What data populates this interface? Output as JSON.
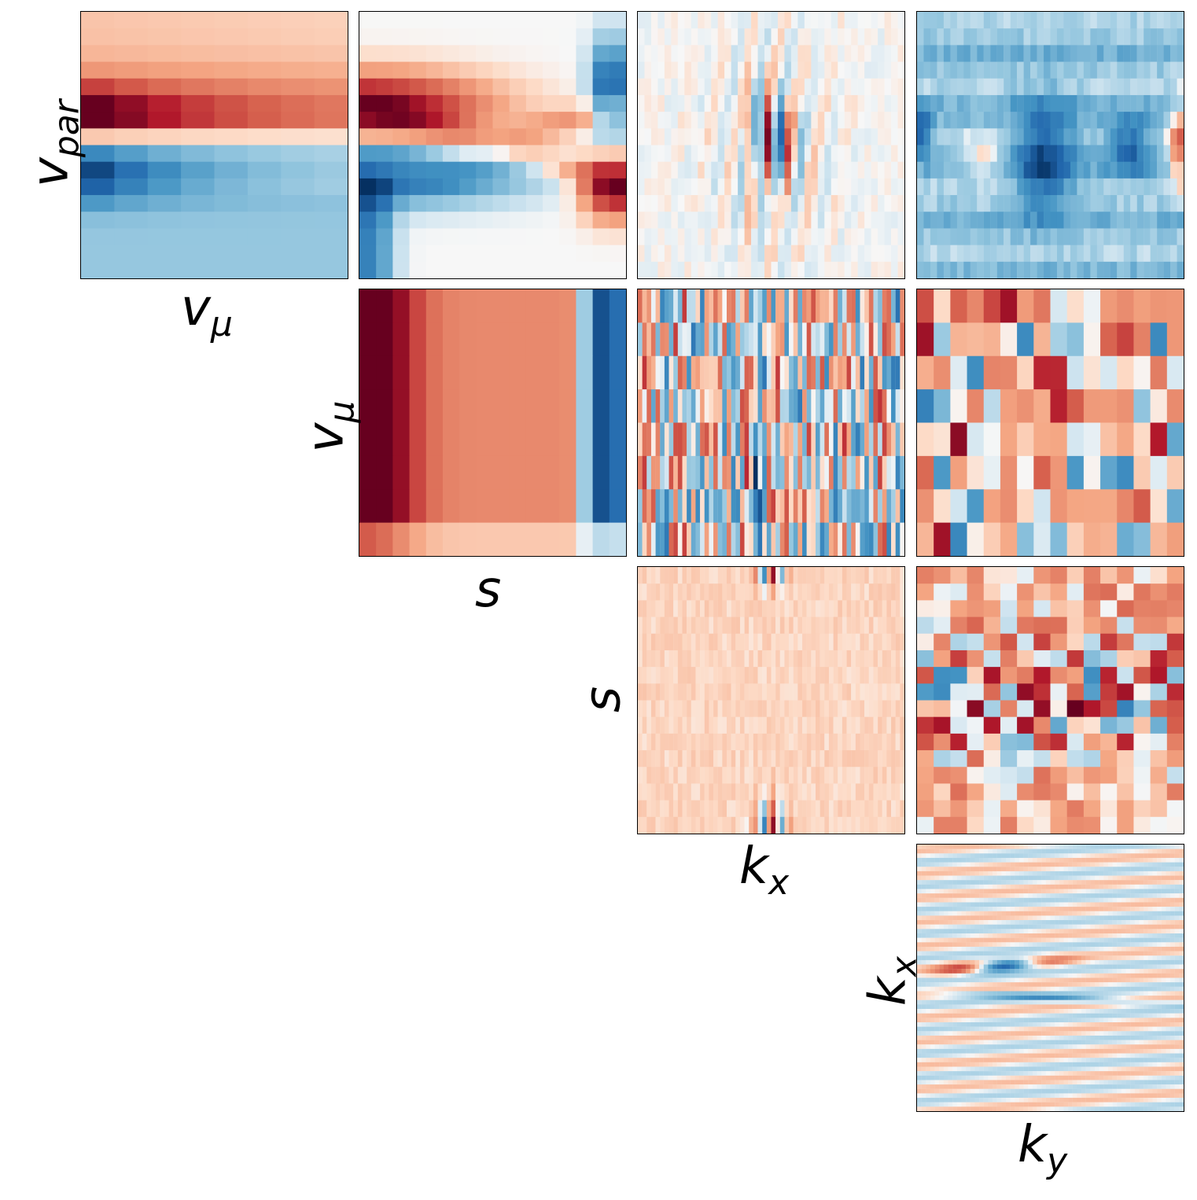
{
  "chart_data": {
    "type": "heatmap",
    "layout": "corner-plot",
    "colormap": "RdBu_r",
    "colors": {
      "red_dark": "#67001f",
      "red": "#d6604d",
      "white": "#f7f7f7",
      "blue": "#4393c3",
      "blue_dark": "#053061"
    },
    "axis_labels": {
      "vpar": {
        "base": "v",
        "sub": "par"
      },
      "vmu": {
        "base": "v",
        "sub": "μ"
      },
      "s": {
        "base": "s",
        "sub": ""
      },
      "kx": {
        "base": "k",
        "sub": "x"
      },
      "ky": {
        "base": "k",
        "sub": "y"
      }
    },
    "panels": [
      {
        "row": 0,
        "col": 0,
        "x": "vmu",
        "y": "vpar",
        "pattern": "vpar_vmu",
        "grid": [
          8,
          16
        ]
      },
      {
        "row": 0,
        "col": 1,
        "x": "s",
        "y": "vpar",
        "pattern": "vpar_s",
        "grid": [
          16,
          16
        ]
      },
      {
        "row": 0,
        "col": 2,
        "x": "kx",
        "y": "vpar",
        "pattern": "vpar_kx",
        "grid": [
          40,
          16
        ]
      },
      {
        "row": 0,
        "col": 3,
        "x": "ky",
        "y": "vpar",
        "pattern": "vpar_ky",
        "grid": [
          40,
          16
        ]
      },
      {
        "row": 1,
        "col": 1,
        "x": "s",
        "y": "vmu",
        "pattern": "vmu_s",
        "grid": [
          16,
          8
        ]
      },
      {
        "row": 1,
        "col": 2,
        "x": "kx",
        "y": "vmu",
        "pattern": "vmu_kx",
        "grid": [
          60,
          8
        ]
      },
      {
        "row": 1,
        "col": 3,
        "x": "ky",
        "y": "vmu",
        "pattern": "vmu_ky",
        "grid": [
          16,
          8
        ]
      },
      {
        "row": 2,
        "col": 2,
        "x": "kx",
        "y": "s",
        "pattern": "s_kx",
        "grid": [
          60,
          16
        ]
      },
      {
        "row": 2,
        "col": 3,
        "x": "ky",
        "y": "s",
        "pattern": "s_ky",
        "grid": [
          16,
          16
        ]
      },
      {
        "row": 3,
        "col": 3,
        "x": "ky",
        "y": "kx",
        "pattern": "kx_ky",
        "grid": [
          60,
          60
        ]
      }
    ]
  }
}
